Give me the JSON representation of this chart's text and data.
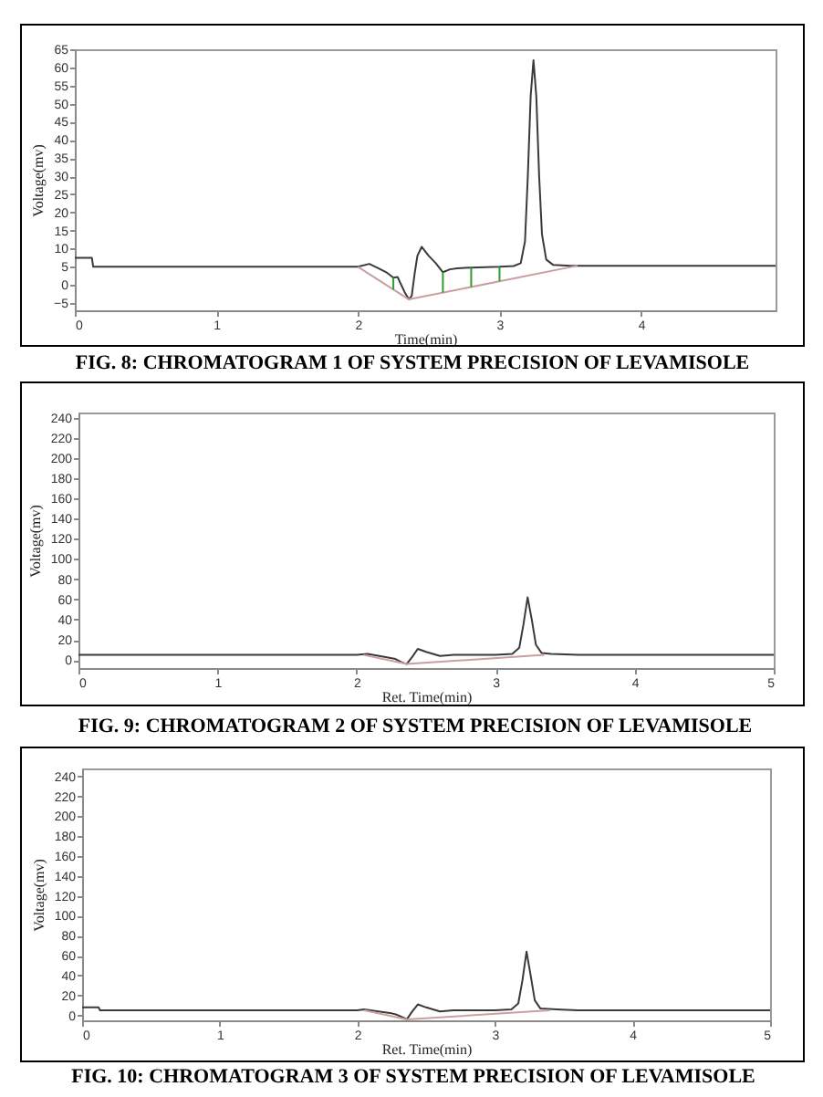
{
  "chart_data": [
    {
      "type": "line",
      "title": "FIG. 8: CHROMATOGRAM 1 OF SYSTEM PRECISION OF LEVAMISOLE",
      "xlabel": "Time(min)",
      "ylabel": "Voltage(mv)",
      "xlim": [
        0,
        4.95
      ],
      "xticks": [
        0,
        1,
        2,
        3,
        4
      ],
      "ylim": [
        -7,
        65
      ],
      "yticks": [
        -5,
        0,
        5,
        10,
        15,
        20,
        25,
        30,
        35,
        40,
        45,
        50,
        55,
        60,
        65
      ],
      "series": [
        {
          "color": "#3a3a3a",
          "x": [
            0,
            0.12,
            0.13,
            0.5,
            1.0,
            1.5,
            2.0,
            2.08,
            2.15,
            2.2,
            2.25,
            2.28,
            2.3,
            2.33,
            2.36,
            2.38,
            2.4,
            2.42,
            2.45,
            2.5,
            2.55,
            2.6,
            2.65,
            2.7,
            2.8,
            2.9,
            3.0,
            3.1,
            3.15,
            3.18,
            3.2,
            3.22,
            3.24,
            3.26,
            3.28,
            3.3,
            3.33,
            3.38,
            3.5,
            4.0,
            4.5,
            4.95
          ],
          "values": [
            7.5,
            7.5,
            5,
            5,
            5,
            5,
            5,
            5.8,
            4.5,
            3.5,
            2,
            2.2,
            0.5,
            -2,
            -4,
            -3,
            3,
            8,
            10.5,
            8,
            6,
            3.5,
            4.3,
            4.6,
            4.8,
            4.9,
            5,
            5.2,
            6,
            12,
            30,
            52,
            62,
            52,
            30,
            14,
            7,
            5.5,
            5.3,
            5.3,
            5.3,
            5.3
          ]
        },
        {
          "color": "#c8a0a0",
          "x": [
            2.0,
            2.36,
            3.55
          ],
          "values": [
            5,
            -4,
            5.3
          ]
        },
        {
          "color": "#2ca02c",
          "x": [
            2.25,
            2.25
          ],
          "values": [
            -1.3,
            2
          ]
        },
        {
          "color": "#2ca02c",
          "x": [
            2.6,
            2.6
          ],
          "values": [
            -2.1,
            3.5
          ]
        },
        {
          "color": "#2ca02c",
          "x": [
            2.8,
            2.8
          ],
          "values": [
            -0.6,
            4.8
          ]
        },
        {
          "color": "#2ca02c",
          "x": [
            3.0,
            3.0
          ],
          "values": [
            1,
            5
          ]
        }
      ]
    },
    {
      "type": "line",
      "title": "FIG. 9: CHROMATOGRAM 2 OF SYSTEM PRECISION OF LEVAMISOLE",
      "xlabel": "Ret. Time(min)",
      "ylabel": "Voltage(mv)",
      "xlim": [
        0,
        5
      ],
      "xticks": [
        0,
        1,
        2,
        3,
        4,
        5
      ],
      "ylim": [
        -8,
        245
      ],
      "yticks": [
        0,
        20,
        40,
        60,
        80,
        100,
        120,
        140,
        160,
        180,
        200,
        220,
        240
      ],
      "series": [
        {
          "color": "#3a3a3a",
          "x": [
            0,
            0.5,
            1.0,
            1.5,
            2.0,
            2.08,
            2.2,
            2.28,
            2.32,
            2.36,
            2.4,
            2.44,
            2.5,
            2.6,
            2.7,
            2.8,
            3.0,
            3.12,
            3.17,
            3.2,
            3.23,
            3.26,
            3.29,
            3.33,
            3.4,
            3.6,
            4.0,
            5.0
          ],
          "values": [
            5,
            5,
            5,
            5,
            5,
            6,
            3,
            1,
            -2,
            -4,
            3,
            11,
            8,
            4,
            5,
            5,
            5,
            6,
            12,
            35,
            62,
            40,
            15,
            7,
            6,
            5,
            5,
            5
          ]
        },
        {
          "color": "#c8a0a0",
          "x": [
            2.05,
            2.36,
            3.35
          ],
          "values": [
            5,
            -4,
            5
          ]
        }
      ]
    },
    {
      "type": "line",
      "title": "FIG. 10: CHROMATOGRAM 3 OF SYSTEM PRECISION OF LEVAMISOLE",
      "xlabel": "Ret. Time(min)",
      "ylabel": "Voltage(mv)",
      "xlim": [
        0,
        5
      ],
      "xticks": [
        0,
        1,
        2,
        3,
        4,
        5
      ],
      "ylim": [
        -5,
        248
      ],
      "yticks": [
        0,
        20,
        40,
        60,
        80,
        100,
        120,
        140,
        160,
        180,
        200,
        220,
        240
      ],
      "series": [
        {
          "color": "#3a3a3a",
          "x": [
            0,
            0.12,
            0.13,
            0.5,
            1.0,
            1.5,
            2.0,
            2.05,
            2.2,
            2.25,
            2.28,
            2.33,
            2.36,
            2.4,
            2.44,
            2.5,
            2.6,
            2.7,
            3.0,
            3.12,
            3.17,
            3.2,
            3.23,
            3.26,
            3.29,
            3.33,
            3.45,
            3.6,
            4.0,
            5.0
          ],
          "values": [
            8,
            8,
            5,
            5,
            5,
            5,
            5,
            6,
            3,
            2,
            1,
            -2,
            -4,
            4,
            11,
            8,
            4,
            5,
            5,
            6,
            12,
            35,
            64,
            40,
            15,
            7,
            6,
            5,
            5,
            5
          ]
        },
        {
          "color": "#c8a0a0",
          "x": [
            2.05,
            2.36,
            3.4
          ],
          "values": [
            5,
            -4,
            5
          ]
        }
      ]
    }
  ]
}
